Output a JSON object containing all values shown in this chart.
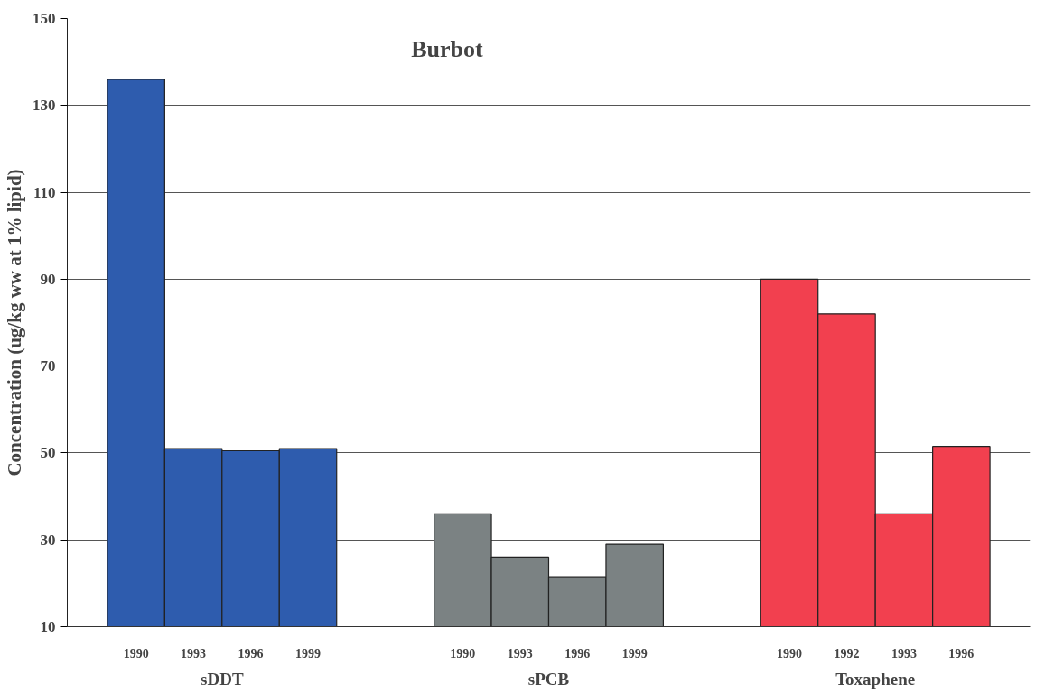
{
  "chart_data": {
    "type": "bar",
    "title": "Burbot",
    "ylabel": "Concentration (ug/kg ww at 1% lipid)",
    "categories": [
      "1990",
      "1993",
      "1996",
      "1999",
      "1990",
      "1993",
      "1996",
      "1999",
      "1990",
      "1992",
      "1993",
      "1996"
    ],
    "series": [
      {
        "name": "sDDT",
        "color": "#2e5cae",
        "values": [
          136,
          51,
          50.5,
          51,
          null,
          null,
          null,
          null,
          null,
          null,
          null,
          null
        ]
      },
      {
        "name": "sPCB",
        "color": "#7b8283",
        "values": [
          null,
          null,
          null,
          null,
          36,
          26,
          21.5,
          29,
          null,
          null,
          null,
          null
        ]
      },
      {
        "name": "Toxaphene",
        "color": "#f2404f",
        "values": [
          null,
          null,
          null,
          null,
          null,
          null,
          null,
          null,
          90,
          82,
          36,
          51.5
        ]
      }
    ],
    "ylim": [
      10,
      150
    ],
    "yticks": [
      10,
      30,
      50,
      70,
      90,
      110,
      130,
      150
    ],
    "grid": "y"
  }
}
